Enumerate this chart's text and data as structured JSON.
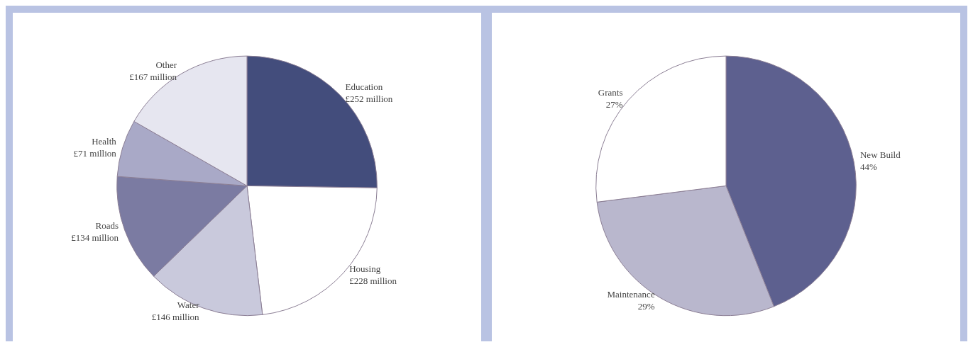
{
  "chart_data": [
    {
      "type": "pie",
      "categories": [
        "Education",
        "Housing",
        "Water",
        "Roads",
        "Health",
        "Other"
      ],
      "values": [
        252,
        228,
        146,
        134,
        71,
        167
      ],
      "value_labels": [
        "£252 million",
        "£228 million",
        "£146 million",
        "£134 million",
        "£71 million",
        "£167 million"
      ],
      "colors": [
        "#434d7c",
        "#ffffff",
        "#c9c9dc",
        "#7b7ba2",
        "#a9a9c7",
        "#e6e6f0"
      ]
    },
    {
      "type": "pie",
      "categories": [
        "New Build",
        "Maintenance",
        "Grants"
      ],
      "values": [
        44,
        29,
        27
      ],
      "value_labels": [
        "44%",
        "29%",
        "27%"
      ],
      "colors": [
        "#5d608f",
        "#b9b7cd",
        "#ffffff"
      ]
    }
  ]
}
